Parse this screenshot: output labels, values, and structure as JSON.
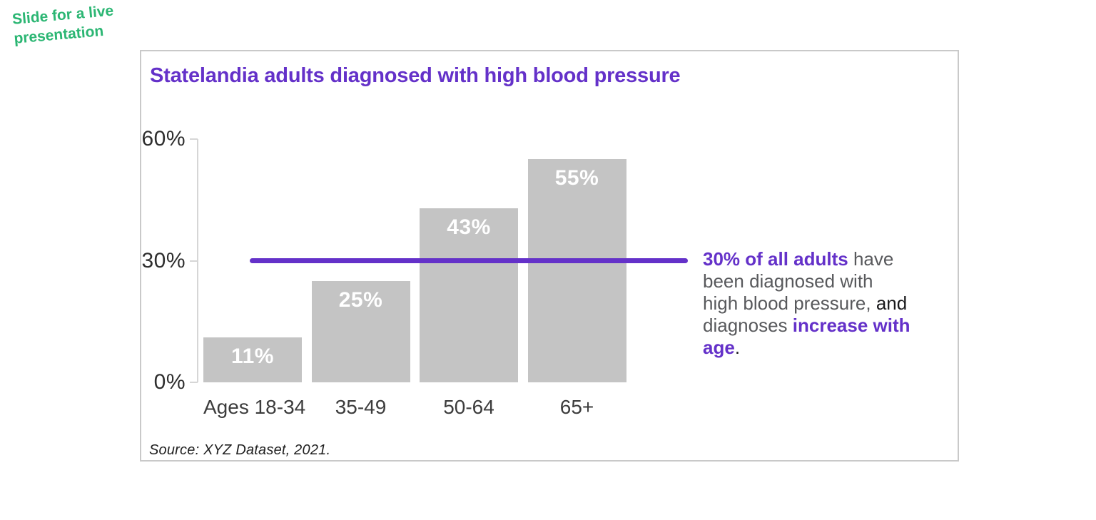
{
  "corner_note": {
    "line1": "Slide for a live",
    "line2": "presentation"
  },
  "colors": {
    "purple": "#6431c9",
    "green": "#2bb673",
    "bar_gray": "#c4c4c4",
    "text_gray": "#58595c",
    "text_dark": "#19191b",
    "axis_gray": "#d6d6d6",
    "border_gray": "#c9c9c9"
  },
  "chart_data": {
    "type": "bar",
    "title": "Statelandia adults diagnosed with high blood pressure",
    "categories": [
      "Ages 18-34",
      "35-49",
      "50-64",
      "65+"
    ],
    "values": [
      11,
      25,
      43,
      55
    ],
    "bar_labels": [
      "11%",
      "25%",
      "43%",
      "55%"
    ],
    "y_ticks": [
      {
        "label": "60%",
        "value": 60
      },
      {
        "label": "30%",
        "value": 30
      },
      {
        "label": "0%",
        "value": 0
      }
    ],
    "ylim": [
      0,
      60
    ],
    "grid": false,
    "legend": "none",
    "reference_line": {
      "value": 30,
      "label": "30% of all adults"
    },
    "source": "Source: XYZ Dataset, 2021."
  },
  "annotation": {
    "lines": [
      [
        {
          "t": "30% of all adults",
          "s": "em"
        },
        {
          "t": " have",
          "s": "gray"
        }
      ],
      [
        {
          "t": "been diagnosed with",
          "s": "gray"
        }
      ],
      [
        {
          "t": "high blood pressure,",
          "s": "gray"
        },
        {
          "t": " and",
          "s": "dark"
        }
      ],
      [
        {
          "t": "diagnoses ",
          "s": "gray"
        },
        {
          "t": "increase with",
          "s": "em"
        }
      ],
      [
        {
          "t": "age",
          "s": "em"
        },
        {
          "t": ".",
          "s": "dark"
        }
      ]
    ]
  }
}
